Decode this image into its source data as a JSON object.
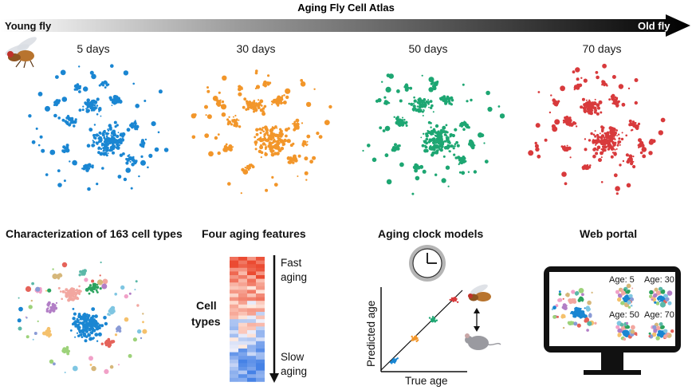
{
  "header": {
    "title": "Aging Fly Cell Atlas",
    "left_label": "Young fly",
    "right_label": "Old fly"
  },
  "timepoints": [
    {
      "label": "5 days",
      "color": "#1a86d2"
    },
    {
      "label": "30 days",
      "color": "#f2962a"
    },
    {
      "label": "50 days",
      "color": "#1da672"
    },
    {
      "label": "70 days",
      "color": "#d83a3c"
    }
  ],
  "panels": {
    "cell_types": {
      "title": "Characterization of 163 cell types"
    },
    "features": {
      "title": "Four aging features",
      "row_label_1": "Cell",
      "row_label_2": "types",
      "fast_1": "Fast",
      "fast_2": "aging",
      "slow_1": "Slow",
      "slow_2": "aging"
    },
    "clock": {
      "title": "Aging clock models",
      "ylabel": "Predicted age",
      "xlabel": "True age"
    },
    "portal": {
      "title": "Web portal",
      "ages": [
        "Age: 5",
        "Age: 30",
        "Age: 50",
        "Age: 70"
      ]
    }
  }
}
